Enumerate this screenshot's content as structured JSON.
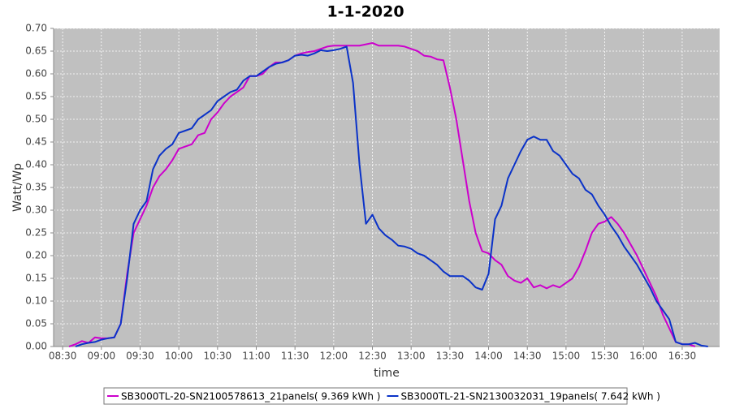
{
  "chart_data": {
    "type": "line",
    "title": "1-1-2020",
    "x_label": "time",
    "y_label": "Watt/Wp",
    "x": [
      "08:35",
      "08:40",
      "08:45",
      "08:50",
      "08:55",
      "09:00",
      "09:05",
      "09:10",
      "09:15",
      "09:20",
      "09:25",
      "09:30",
      "09:35",
      "09:40",
      "09:45",
      "09:50",
      "09:55",
      "10:00",
      "10:05",
      "10:10",
      "10:15",
      "10:20",
      "10:25",
      "10:30",
      "10:35",
      "10:40",
      "10:45",
      "10:50",
      "10:55",
      "11:00",
      "11:05",
      "11:10",
      "11:15",
      "11:20",
      "11:25",
      "11:30",
      "11:35",
      "11:40",
      "11:45",
      "11:50",
      "11:55",
      "12:00",
      "12:05",
      "12:10",
      "12:15",
      "12:20",
      "12:25",
      "12:30",
      "12:35",
      "12:40",
      "12:45",
      "12:50",
      "12:55",
      "13:00",
      "13:05",
      "13:10",
      "13:15",
      "13:20",
      "13:25",
      "13:30",
      "13:35",
      "13:40",
      "13:45",
      "13:50",
      "13:55",
      "14:00",
      "14:05",
      "14:10",
      "14:15",
      "14:20",
      "14:25",
      "14:30",
      "14:35",
      "14:40",
      "14:45",
      "14:50",
      "14:55",
      "15:00",
      "15:05",
      "15:10",
      "15:15",
      "15:20",
      "15:25",
      "15:30",
      "15:35",
      "15:40",
      "15:45",
      "15:50",
      "15:55",
      "16:00",
      "16:05",
      "16:10",
      "16:15",
      "16:20",
      "16:25",
      "16:30",
      "16:35",
      "16:40",
      "16:45",
      "16:50"
    ],
    "series": [
      {
        "name": "SB3000TL-20-SN2100578613_21panels( 9.369 kWh )",
        "color": "#cc00cc",
        "values": [
          0.0,
          0.005,
          0.012,
          0.008,
          0.02,
          0.018,
          0.018,
          0.02,
          0.05,
          0.16,
          0.25,
          0.28,
          0.31,
          0.35,
          0.375,
          0.39,
          0.41,
          0.435,
          0.44,
          0.445,
          0.465,
          0.47,
          0.5,
          0.515,
          0.535,
          0.55,
          0.56,
          0.57,
          0.595,
          0.595,
          0.6,
          0.615,
          0.625,
          0.625,
          0.63,
          0.64,
          0.645,
          0.648,
          0.65,
          0.655,
          0.66,
          0.662,
          0.662,
          0.662,
          0.662,
          0.662,
          0.665,
          0.668,
          0.662,
          0.662,
          0.662,
          0.662,
          0.66,
          0.655,
          0.65,
          0.64,
          0.638,
          0.632,
          0.63,
          0.57,
          0.5,
          0.41,
          0.32,
          0.25,
          0.21,
          0.205,
          0.19,
          0.18,
          0.155,
          0.145,
          0.14,
          0.15,
          0.13,
          0.135,
          0.128,
          0.135,
          0.13,
          0.14,
          0.15,
          0.175,
          0.21,
          0.25,
          0.27,
          0.275,
          0.285,
          0.27,
          0.25,
          0.225,
          0.2,
          0.17,
          0.14,
          0.11,
          0.07,
          0.04,
          0.01,
          0.005,
          0.005,
          0.0,
          null,
          null
        ]
      },
      {
        "name": "SB3000TL-21-SN2130032031_19panels( 7.642 kWh )",
        "color": "#0a32c8",
        "values": [
          null,
          0.0,
          0.005,
          0.008,
          0.01,
          0.015,
          0.018,
          0.02,
          0.05,
          0.15,
          0.27,
          0.3,
          0.32,
          0.39,
          0.42,
          0.435,
          0.445,
          0.47,
          0.475,
          0.48,
          0.5,
          0.51,
          0.52,
          0.54,
          0.55,
          0.56,
          0.565,
          0.585,
          0.595,
          0.595,
          0.605,
          0.615,
          0.622,
          0.625,
          0.63,
          0.64,
          0.642,
          0.64,
          0.645,
          0.652,
          0.65,
          0.652,
          0.655,
          0.66,
          0.58,
          0.4,
          0.27,
          0.29,
          0.26,
          0.245,
          0.235,
          0.222,
          0.22,
          0.215,
          0.205,
          0.2,
          0.19,
          0.18,
          0.165,
          0.155,
          0.155,
          0.155,
          0.145,
          0.13,
          0.125,
          0.16,
          0.28,
          0.31,
          0.37,
          0.4,
          0.43,
          0.455,
          0.462,
          0.455,
          0.455,
          0.43,
          0.42,
          0.4,
          0.38,
          0.37,
          0.345,
          0.335,
          0.31,
          0.29,
          0.265,
          0.245,
          0.22,
          0.2,
          0.18,
          0.155,
          0.13,
          0.1,
          0.08,
          0.06,
          0.01,
          0.005,
          0.005,
          0.008,
          0.002,
          0.0
        ]
      }
    ],
    "xlim": [
      "08:23",
      "16:59"
    ],
    "xticks": [
      "08:30",
      "09:00",
      "09:30",
      "10:00",
      "10:30",
      "11:00",
      "11:30",
      "12:00",
      "12:30",
      "13:00",
      "13:30",
      "14:00",
      "14:30",
      "15:00",
      "15:30",
      "16:00",
      "16:30"
    ],
    "ylim": [
      0,
      0.7
    ],
    "yticks": [
      {
        "value": 0,
        "label": "0.00"
      },
      {
        "value": 0.05,
        "label": "0.05"
      },
      {
        "value": 0.1,
        "label": "0.10"
      },
      {
        "value": 0.15,
        "label": "0.15"
      },
      {
        "value": 0.2,
        "label": "0.20"
      },
      {
        "value": 0.25,
        "label": "0.25"
      },
      {
        "value": 0.3,
        "label": "0.30"
      },
      {
        "value": 0.35,
        "label": "0.35"
      },
      {
        "value": 0.4,
        "label": "0.40"
      },
      {
        "value": 0.45,
        "label": "0.45"
      },
      {
        "value": 0.5,
        "label": "0.50"
      },
      {
        "value": 0.55,
        "label": "0.55"
      },
      {
        "value": 0.6,
        "label": "0.60"
      },
      {
        "value": 0.65,
        "label": "0.65"
      },
      {
        "value": 0.7,
        "label": "0.70"
      }
    ],
    "grid": true
  }
}
